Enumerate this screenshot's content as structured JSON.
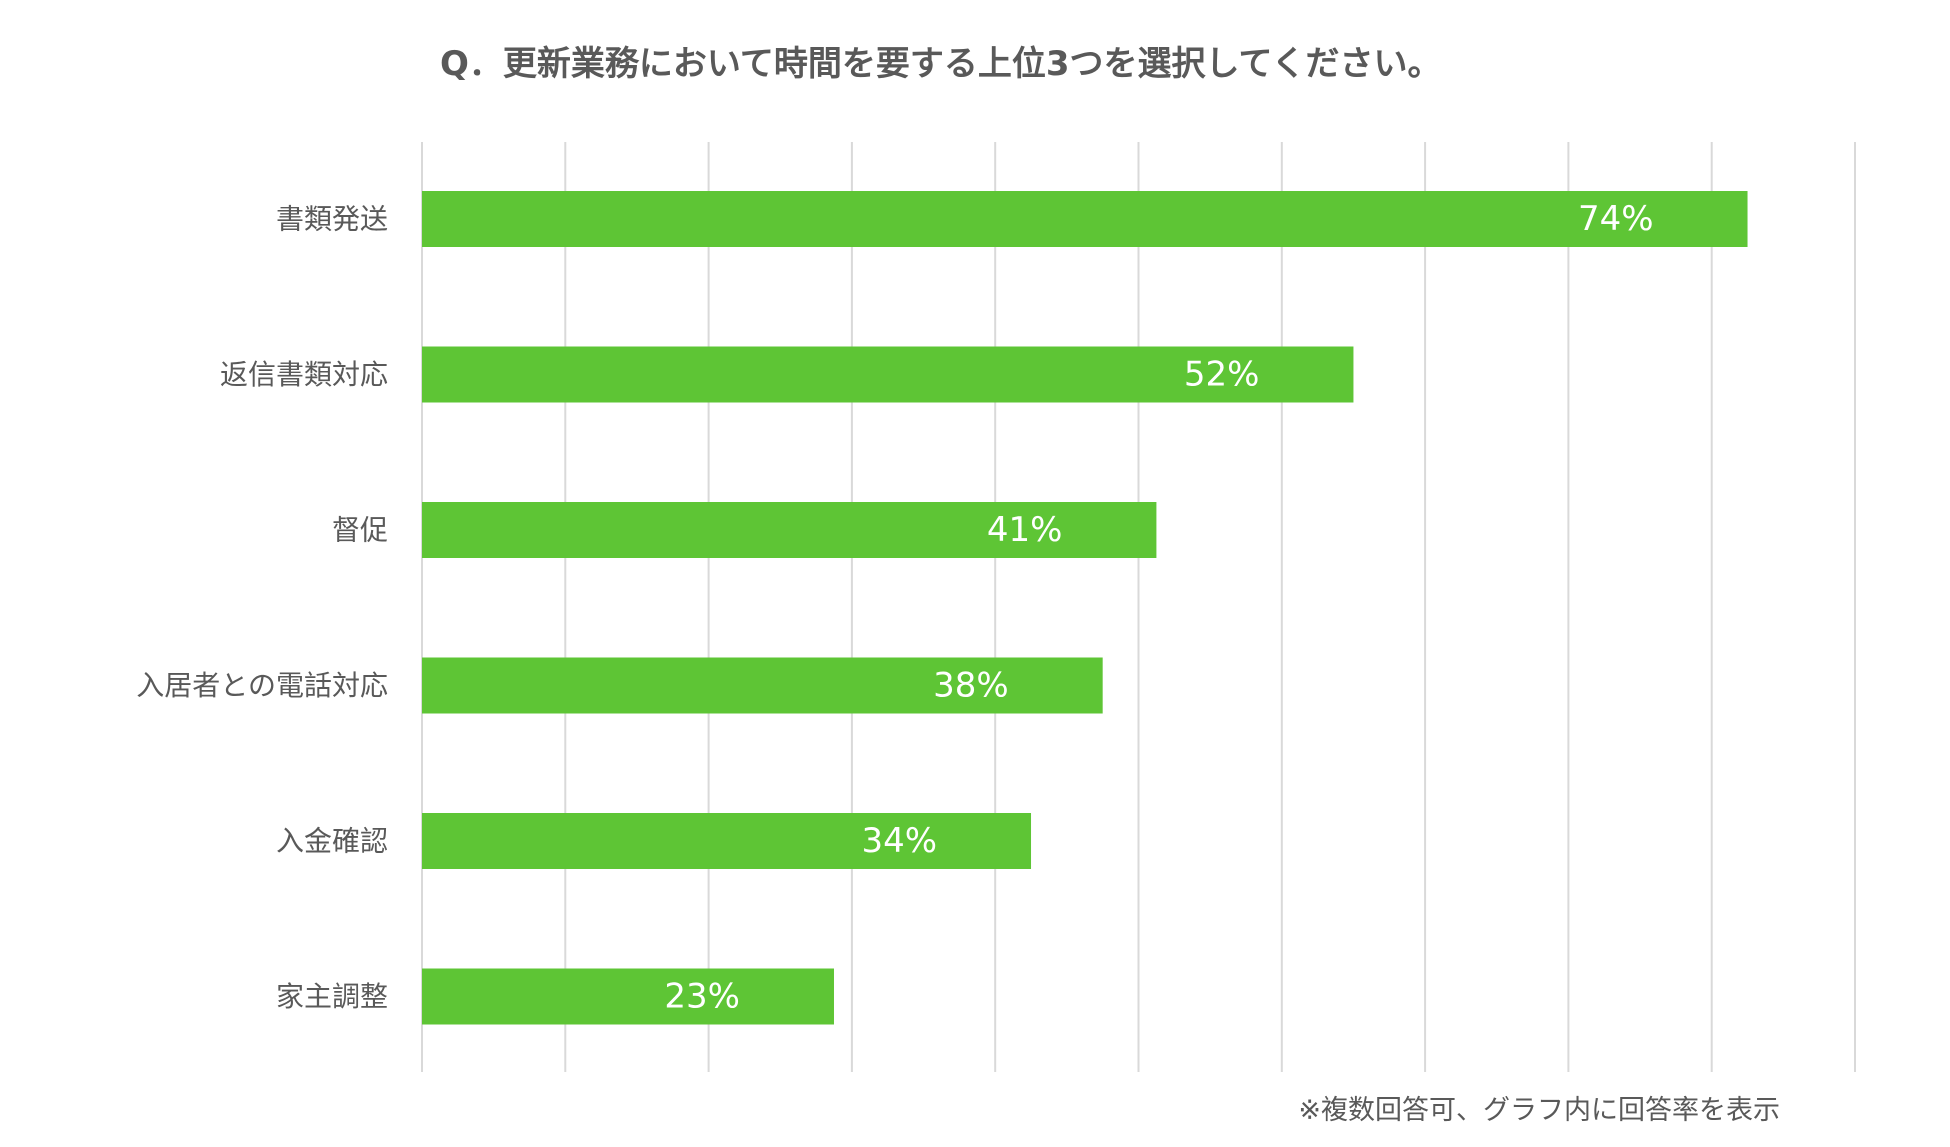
{
  "colors": {
    "bar": "#5EC535",
    "grid": "#D9D9D9",
    "text": "#595959",
    "value_label": "#FFFFFF"
  },
  "chart_data": {
    "type": "bar",
    "orientation": "horizontal",
    "title": "Q．更新業務において時間を要する上位3つを選択してください。",
    "note": "※複数回答可、グラフ内に回答率を表示",
    "categories": [
      "書類発送",
      "返信書類対応",
      "督促",
      "入居者との電話対応",
      "入金確認",
      "家主調整"
    ],
    "values": [
      74,
      52,
      41,
      38,
      34,
      23
    ],
    "value_labels": [
      "74%",
      "52%",
      "41%",
      "38%",
      "34%",
      "23%"
    ],
    "xlim": [
      0,
      80
    ],
    "grid_step": 8,
    "grid": true,
    "legend": "none",
    "xlabel": "",
    "ylabel": ""
  }
}
